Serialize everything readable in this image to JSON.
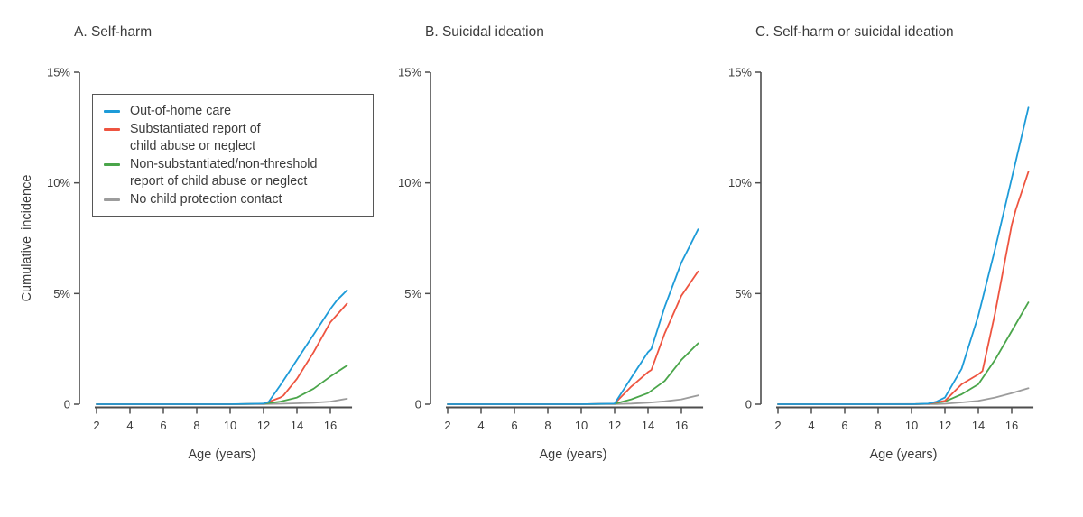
{
  "figure": {
    "ylabel": "Cumulative  incidence",
    "text_color": "#3b3b3b",
    "axis_color": "#4d4d4d",
    "background": "#ffffff"
  },
  "legend": {
    "position": "top-left-inside-panel-A",
    "items": [
      {
        "label": "Out-of-home care",
        "color": "#1d9bd8"
      },
      {
        "label": "Substantiated report of\nchild abuse or neglect",
        "color": "#ee5440"
      },
      {
        "label": "Non-substantiated/non-threshold\nreport of child abuse or neglect",
        "color": "#4aa54a"
      },
      {
        "label": "No child protection contact",
        "color": "#9c9c9c"
      }
    ]
  },
  "chart_data": [
    {
      "type": "line",
      "title": "A. Self-harm",
      "xlabel": "Age (years)",
      "ylabel": "Cumulative incidence",
      "xlim": [
        2,
        17.3
      ],
      "ylim": [
        0,
        15
      ],
      "grid": false,
      "xticks": [
        2,
        4,
        6,
        8,
        10,
        12,
        14,
        16
      ],
      "yticks": [
        {
          "v": 0,
          "label": "0"
        },
        {
          "v": 5,
          "label": "5%"
        },
        {
          "v": 10,
          "label": "10%"
        },
        {
          "v": 15,
          "label": "15%"
        }
      ],
      "series": [
        {
          "name": "Out-of-home care",
          "points": [
            [
              2,
              0
            ],
            [
              10,
              0
            ],
            [
              12,
              0.03
            ],
            [
              12.3,
              0.1
            ],
            [
              13,
              0.85
            ],
            [
              14,
              2.0
            ],
            [
              15,
              3.15
            ],
            [
              16,
              4.3
            ],
            [
              16.4,
              4.7
            ],
            [
              17,
              5.15
            ]
          ]
        },
        {
          "name": "Substantiated report of child abuse or neglect",
          "points": [
            [
              2,
              0
            ],
            [
              10,
              0
            ],
            [
              12,
              0.02
            ],
            [
              13,
              0.3
            ],
            [
              13.2,
              0.4
            ],
            [
              14,
              1.15
            ],
            [
              15,
              2.35
            ],
            [
              16,
              3.7
            ],
            [
              17,
              4.55
            ]
          ]
        },
        {
          "name": "Non-substantiated/non-threshold report of child abuse or neglect",
          "points": [
            [
              2,
              0
            ],
            [
              10,
              0
            ],
            [
              12,
              0.02
            ],
            [
              13,
              0.12
            ],
            [
              14,
              0.3
            ],
            [
              15,
              0.7
            ],
            [
              16,
              1.25
            ],
            [
              17,
              1.75
            ]
          ]
        },
        {
          "name": "No child protection contact",
          "points": [
            [
              2,
              0
            ],
            [
              12,
              0.01
            ],
            [
              13,
              0.02
            ],
            [
              14,
              0.04
            ],
            [
              15,
              0.07
            ],
            [
              16,
              0.12
            ],
            [
              17,
              0.25
            ]
          ]
        }
      ]
    },
    {
      "type": "line",
      "title": "B. Suicidal ideation",
      "xlabel": "Age (years)",
      "ylabel": "Cumulative incidence",
      "xlim": [
        2,
        17.3
      ],
      "ylim": [
        0,
        15
      ],
      "grid": false,
      "xticks": [
        2,
        4,
        6,
        8,
        10,
        12,
        14,
        16
      ],
      "yticks": [
        {
          "v": 0,
          "label": "0"
        },
        {
          "v": 5,
          "label": "5%"
        },
        {
          "v": 10,
          "label": "10%"
        },
        {
          "v": 15,
          "label": "15%"
        }
      ],
      "series": [
        {
          "name": "Out-of-home care",
          "points": [
            [
              2,
              0
            ],
            [
              10,
              0
            ],
            [
              12,
              0.03
            ],
            [
              13,
              1.2
            ],
            [
              14,
              2.35
            ],
            [
              14.2,
              2.5
            ],
            [
              15,
              4.4
            ],
            [
              16,
              6.4
            ],
            [
              17,
              7.9
            ]
          ]
        },
        {
          "name": "Substantiated report of child abuse or neglect",
          "points": [
            [
              2,
              0
            ],
            [
              10,
              0
            ],
            [
              12,
              0.03
            ],
            [
              13,
              0.8
            ],
            [
              14,
              1.45
            ],
            [
              14.2,
              1.55
            ],
            [
              15,
              3.2
            ],
            [
              16,
              4.9
            ],
            [
              17,
              6.0
            ]
          ]
        },
        {
          "name": "Non-substantiated/non-threshold report of child abuse or neglect",
          "points": [
            [
              2,
              0
            ],
            [
              10,
              0
            ],
            [
              12,
              0.02
            ],
            [
              13,
              0.22
            ],
            [
              14,
              0.5
            ],
            [
              15,
              1.05
            ],
            [
              16,
              2.0
            ],
            [
              17,
              2.75
            ]
          ]
        },
        {
          "name": "No child protection contact",
          "points": [
            [
              2,
              0
            ],
            [
              12,
              0.01
            ],
            [
              13,
              0.03
            ],
            [
              14,
              0.07
            ],
            [
              15,
              0.13
            ],
            [
              16,
              0.22
            ],
            [
              17,
              0.4
            ]
          ]
        }
      ]
    },
    {
      "type": "line",
      "title": "C. Self-harm or suicidal ideation",
      "xlabel": "Age (years)",
      "ylabel": "Cumulative incidence",
      "xlim": [
        2,
        17.3
      ],
      "ylim": [
        0,
        15
      ],
      "grid": false,
      "xticks": [
        2,
        4,
        6,
        8,
        10,
        12,
        14,
        16
      ],
      "yticks": [
        {
          "v": 0,
          "label": "0"
        },
        {
          "v": 5,
          "label": "5%"
        },
        {
          "v": 10,
          "label": "10%"
        },
        {
          "v": 15,
          "label": "15%"
        }
      ],
      "series": [
        {
          "name": "Out-of-home care",
          "points": [
            [
              2,
              0
            ],
            [
              10,
              0
            ],
            [
              11,
              0.03
            ],
            [
              11.5,
              0.12
            ],
            [
              12,
              0.3
            ],
            [
              13,
              1.6
            ],
            [
              14,
              4.0
            ],
            [
              15,
              7.0
            ],
            [
              16,
              10.2
            ],
            [
              17,
              13.4
            ]
          ]
        },
        {
          "name": "Substantiated report of child abuse or neglect",
          "points": [
            [
              2,
              0
            ],
            [
              10,
              0
            ],
            [
              11,
              0.02
            ],
            [
              12,
              0.15
            ],
            [
              13,
              0.9
            ],
            [
              14,
              1.35
            ],
            [
              14.25,
              1.5
            ],
            [
              15,
              4.1
            ],
            [
              16,
              8.1
            ],
            [
              16.25,
              8.8
            ],
            [
              17,
              10.5
            ]
          ]
        },
        {
          "name": "Non-substantiated/non-threshold report of child abuse or neglect",
          "points": [
            [
              2,
              0
            ],
            [
              10,
              0
            ],
            [
              11,
              0.02
            ],
            [
              12,
              0.12
            ],
            [
              13,
              0.45
            ],
            [
              14,
              0.9
            ],
            [
              15,
              2.0
            ],
            [
              16,
              3.3
            ],
            [
              17,
              4.6
            ]
          ]
        },
        {
          "name": "No child protection contact",
          "points": [
            [
              2,
              0
            ],
            [
              11.5,
              0.01
            ],
            [
              12,
              0.02
            ],
            [
              13,
              0.08
            ],
            [
              14,
              0.15
            ],
            [
              15,
              0.3
            ],
            [
              16,
              0.5
            ],
            [
              17,
              0.72
            ]
          ]
        }
      ]
    }
  ]
}
